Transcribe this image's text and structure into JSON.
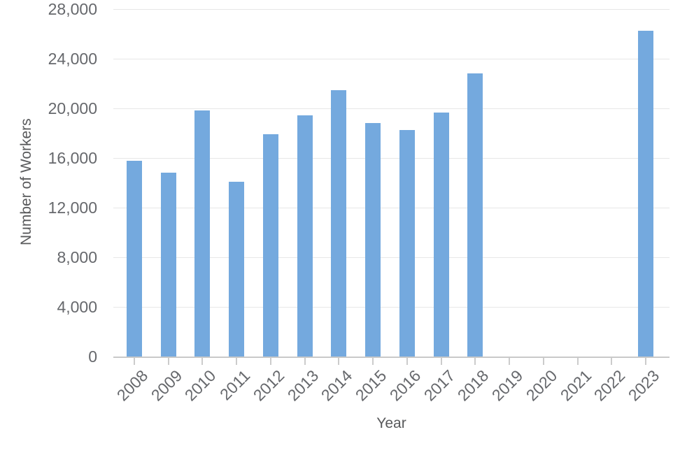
{
  "chart_data": {
    "type": "bar",
    "title": "",
    "xlabel": "Year",
    "ylabel": "Number of Workers",
    "categories": [
      "2008",
      "2009",
      "2010",
      "2011",
      "2012",
      "2013",
      "2014",
      "2015",
      "2016",
      "2017",
      "2018",
      "2019",
      "2020",
      "2021",
      "2022",
      "2023"
    ],
    "values": [
      15750,
      14800,
      19850,
      14100,
      17900,
      19450,
      21450,
      18800,
      18250,
      19650,
      22800,
      0,
      0,
      0,
      0,
      26250
    ],
    "ylim": [
      0,
      28000
    ],
    "ytick_interval": 4000,
    "yticks": [
      {
        "value": 0,
        "label": "0"
      },
      {
        "value": 4000,
        "label": "4,000"
      },
      {
        "value": 8000,
        "label": "8,000"
      },
      {
        "value": 12000,
        "label": "12,000"
      },
      {
        "value": 16000,
        "label": "16,000"
      },
      {
        "value": 20000,
        "label": "20,000"
      },
      {
        "value": 24000,
        "label": "24,000"
      },
      {
        "value": 28000,
        "label": "28,000"
      }
    ],
    "grid": "horizontal",
    "legend_position": "none",
    "colors": {
      "bar": "#74a9de",
      "gridline": "#e7e7e7",
      "axis_line": "#c9c9c9",
      "tick_mark": "#cccccc",
      "tick_label": "#66686c",
      "axis_title": "#58595b",
      "background": "#ffffff"
    }
  }
}
